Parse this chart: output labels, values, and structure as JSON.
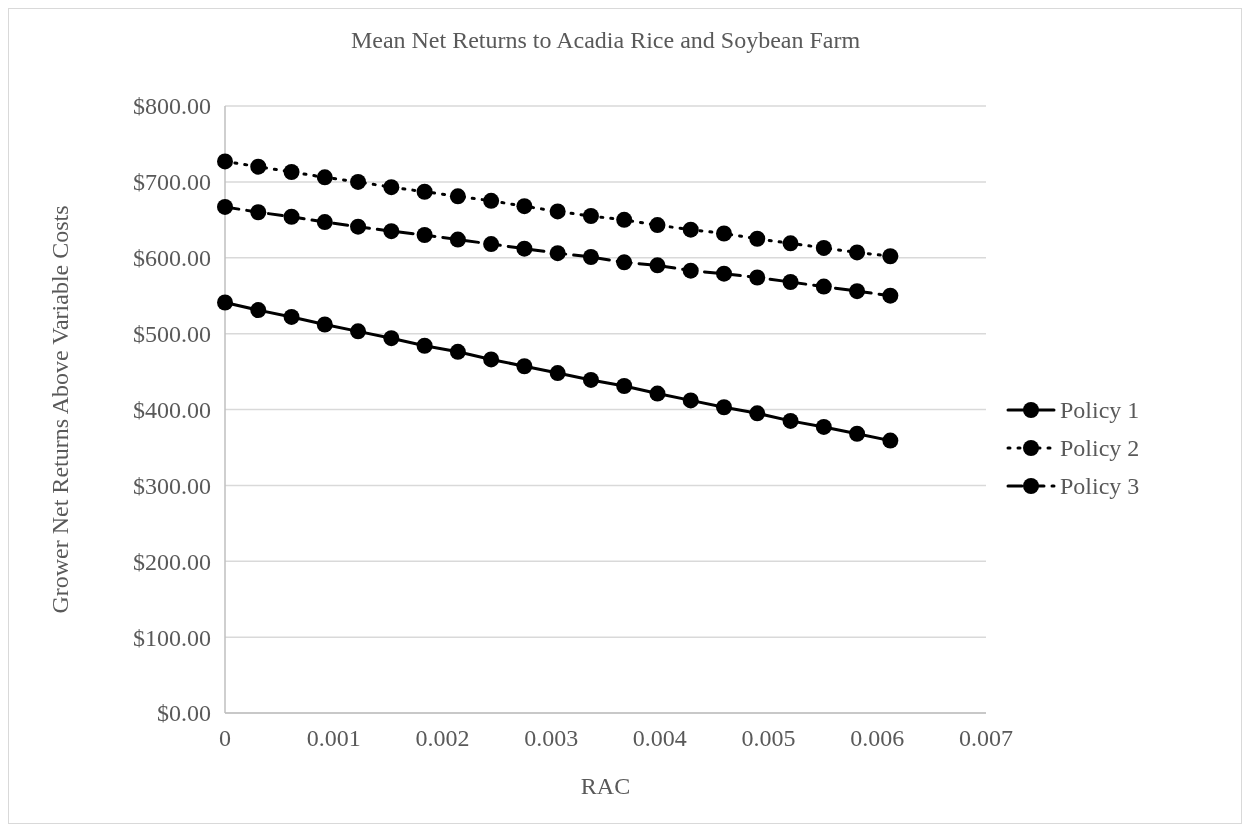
{
  "chart_data": {
    "type": "line",
    "title": "Mean Net Returns to Acadia Rice and Soybean Farm",
    "xlabel": "RAC",
    "ylabel": "Grower Net Returns Above Variable Costs",
    "x": [
      0,
      0.000306,
      0.000612,
      0.000918,
      0.001224,
      0.00153,
      0.001836,
      0.002142,
      0.002448,
      0.002754,
      0.00306,
      0.003366,
      0.003672,
      0.003978,
      0.004284,
      0.00459,
      0.004896,
      0.005202,
      0.005508,
      0.005814,
      0.00612
    ],
    "series": [
      {
        "name": "Policy 1",
        "color": "#000000",
        "line_style": "solid",
        "values": [
          541,
          531,
          522,
          512,
          503,
          494,
          484,
          476,
          466,
          457,
          448,
          439,
          431,
          421,
          412,
          403,
          395,
          385,
          377,
          368,
          359
        ]
      },
      {
        "name": "Policy 2",
        "color": "#000000",
        "line_style": "dotted",
        "values": [
          727,
          720,
          713,
          706,
          700,
          693,
          687,
          681,
          675,
          668,
          661,
          655,
          650,
          643,
          637,
          632,
          625,
          619,
          613,
          607,
          602
        ]
      },
      {
        "name": "Policy 3",
        "color": "#000000",
        "line_style": "dashed",
        "values": [
          667,
          660,
          654,
          647,
          641,
          635,
          630,
          624,
          618,
          612,
          606,
          601,
          594,
          590,
          583,
          579,
          574,
          568,
          562,
          556,
          550
        ]
      }
    ],
    "xlim": [
      0,
      0.007
    ],
    "xticks": [
      0,
      0.001,
      0.002,
      0.003,
      0.004,
      0.005,
      0.006,
      0.007
    ],
    "ylim": [
      0,
      800
    ],
    "yticks": [
      {
        "value": 0,
        "label": "$0.00"
      },
      {
        "value": 100,
        "label": "$100.00"
      },
      {
        "value": 200,
        "label": "$200.00"
      },
      {
        "value": 300,
        "label": "$300.00"
      },
      {
        "value": 400,
        "label": "$400.00"
      },
      {
        "value": 500,
        "label": "$500.00"
      },
      {
        "value": 600,
        "label": "$600.00"
      },
      {
        "value": 700,
        "label": "$700.00"
      },
      {
        "value": 800,
        "label": "$800.00"
      }
    ],
    "grid": "y",
    "legend": "right",
    "marker": "circle"
  }
}
